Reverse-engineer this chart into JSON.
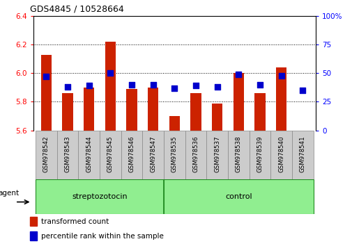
{
  "title": "GDS4845 / 10528664",
  "samples": [
    "GSM978542",
    "GSM978543",
    "GSM978544",
    "GSM978545",
    "GSM978546",
    "GSM978547",
    "GSM978535",
    "GSM978536",
    "GSM978537",
    "GSM978538",
    "GSM978539",
    "GSM978540",
    "GSM978541"
  ],
  "red_values": [
    6.13,
    5.86,
    5.9,
    6.22,
    5.89,
    5.9,
    5.7,
    5.86,
    5.79,
    6.0,
    5.86,
    6.04,
    5.6
  ],
  "blue_values": [
    47,
    38,
    39,
    50,
    40,
    40,
    37,
    39,
    38,
    49,
    40,
    48,
    35
  ],
  "ylim_left": [
    5.6,
    6.4
  ],
  "ylim_right": [
    0,
    100
  ],
  "yticks_left": [
    5.6,
    5.8,
    6.0,
    6.2,
    6.4
  ],
  "yticks_right": [
    0,
    25,
    50,
    75,
    100
  ],
  "bar_color": "#CC2200",
  "dot_color": "#0000CC",
  "background_color": "#ffffff",
  "tick_area_color": "#cccccc",
  "legend_labels": [
    "transformed count",
    "percentile rank within the sample"
  ],
  "bar_width": 0.5,
  "dot_size": 30,
  "strep_count": 6,
  "ctrl_count": 7
}
